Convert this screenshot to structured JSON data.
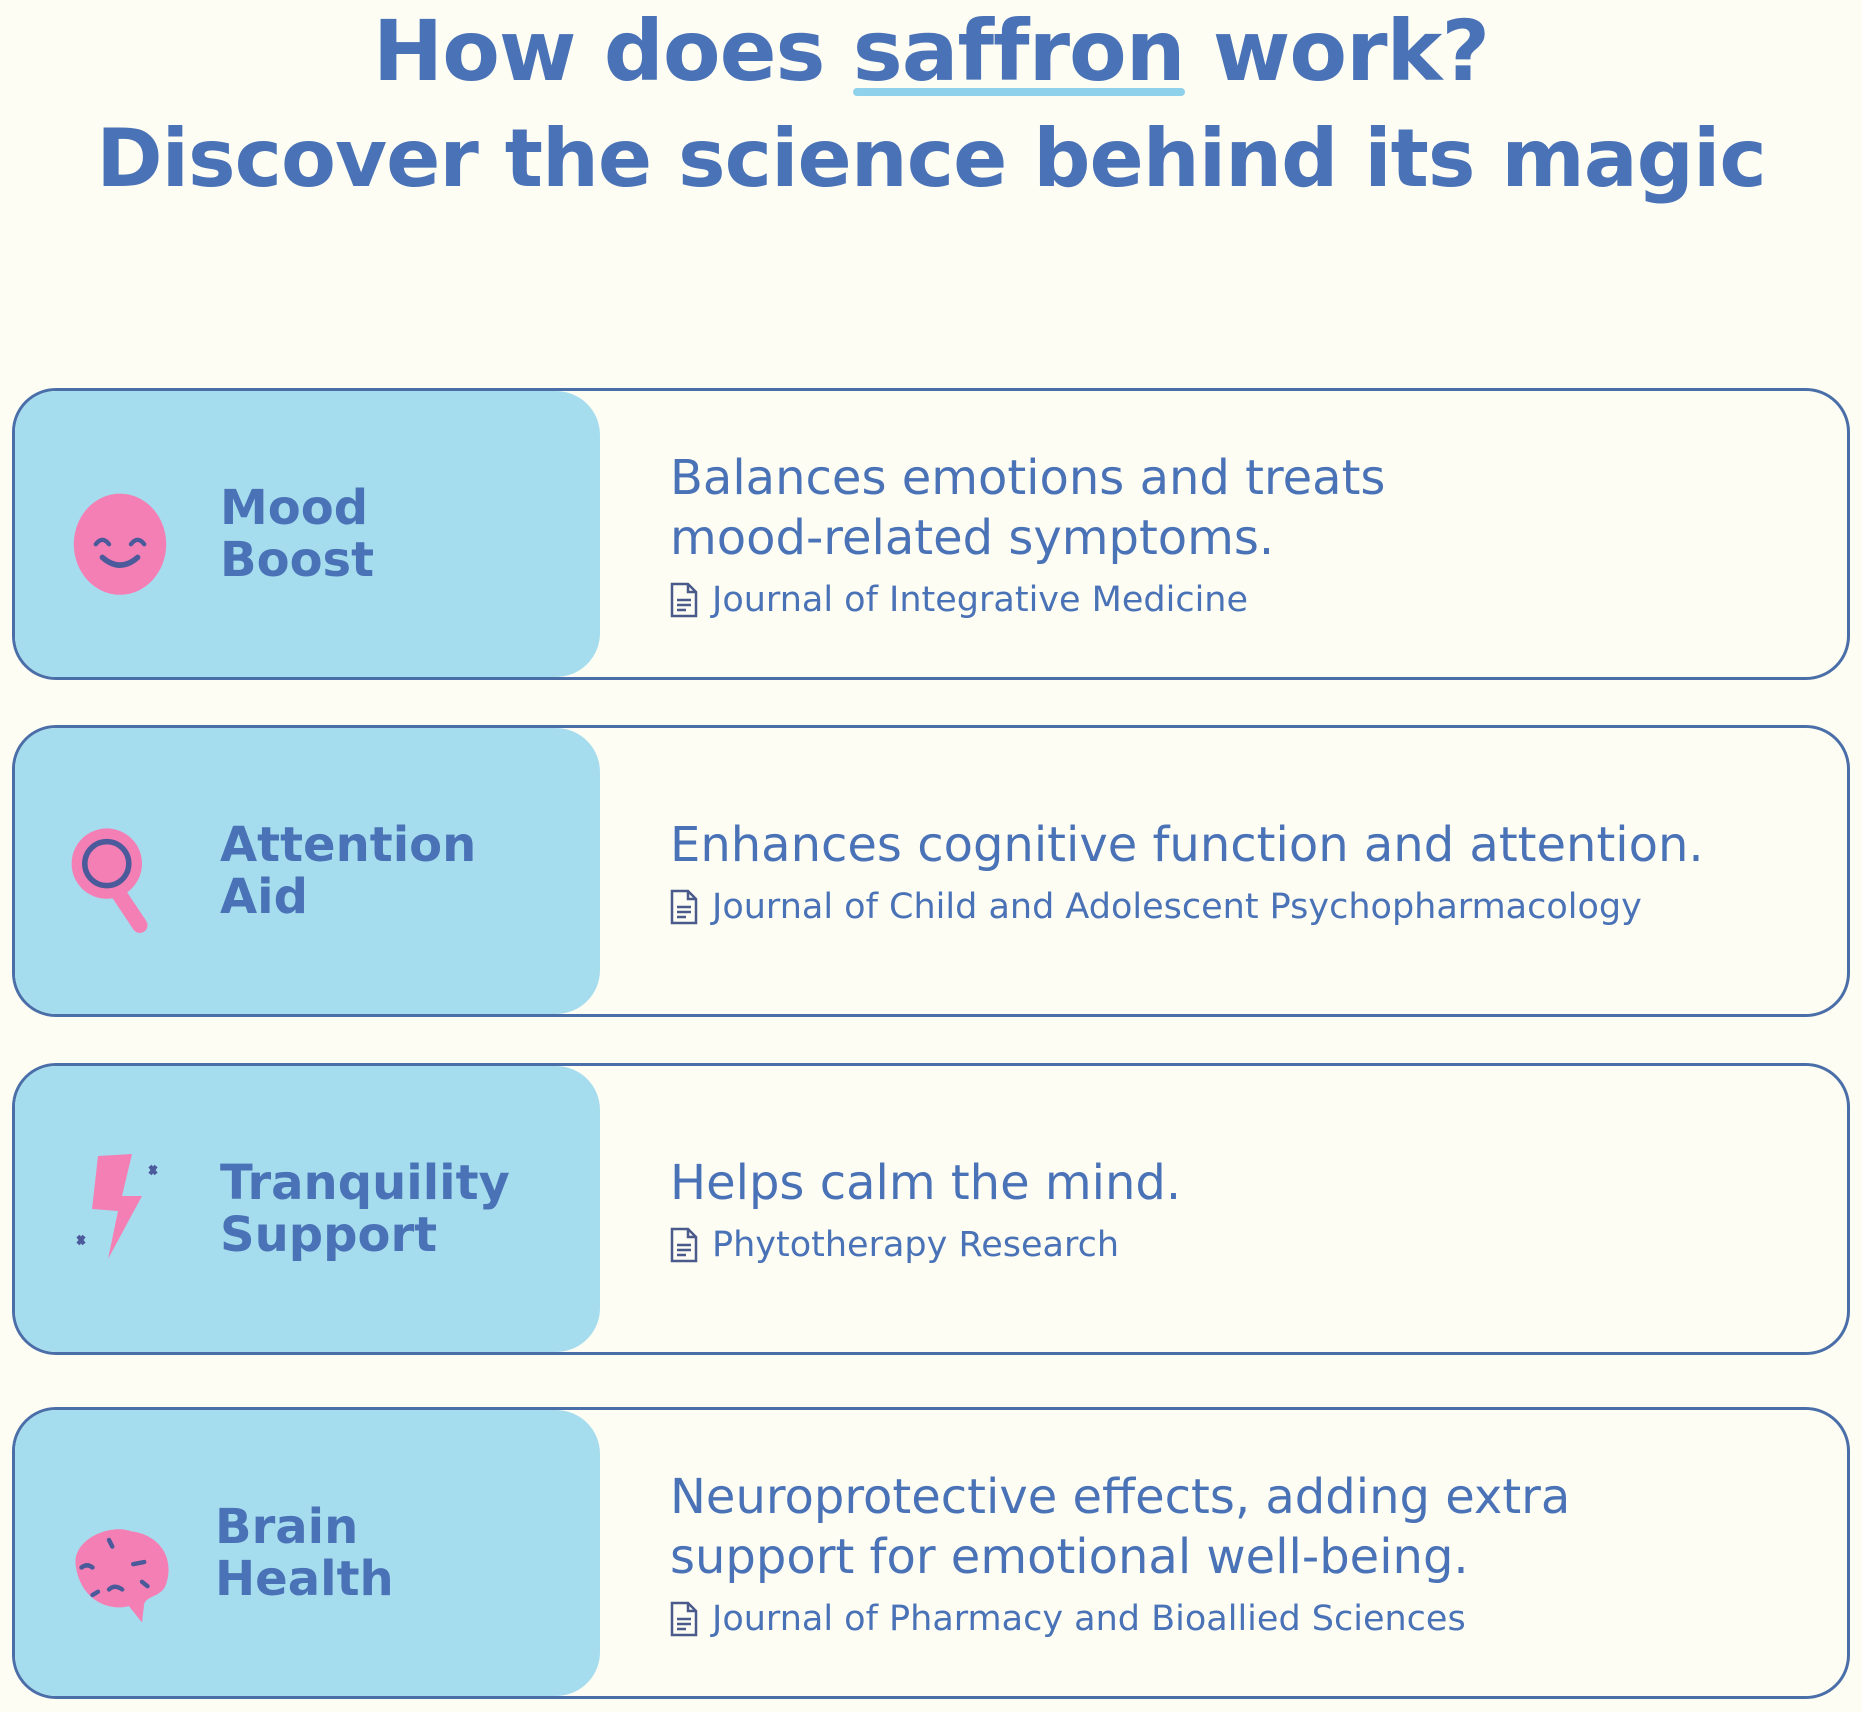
{
  "header": {
    "line1_before": "How does ",
    "line1_highlight": "saffron",
    "line1_after": " work?",
    "line2": "Discover the science behind its magic"
  },
  "colors": {
    "text": "#4a72b6",
    "panel": "#a6ddee",
    "icon": "#f47fb5",
    "background": "#fdfdf4",
    "underline": "#8fd1ea"
  },
  "benefits": [
    {
      "label_1": "Mood",
      "label_2": "Boost",
      "icon": "smiley-face-icon",
      "description": "Balances emotions and treats mood-related symptoms.",
      "source": "Journal of Integrative Medicine"
    },
    {
      "label_1": "Attention",
      "label_2": "Aid",
      "icon": "magnifying-glass-icon",
      "description": "Enhances cognitive function and attention.",
      "source": "Journal of Child and Adolescent Psychopharmacology"
    },
    {
      "label_1": "Tranquility",
      "label_2": "Support",
      "icon": "lightning-bolt-icon",
      "description": "Helps calm the mind.",
      "source": "Phytotherapy Research"
    },
    {
      "label_1": "Brain",
      "label_2": "Health",
      "icon": "brain-icon",
      "description": "Neuroprotective effects, adding extra support for emotional well-being.",
      "source": "Journal of Pharmacy and Bioallied Sciences"
    }
  ]
}
